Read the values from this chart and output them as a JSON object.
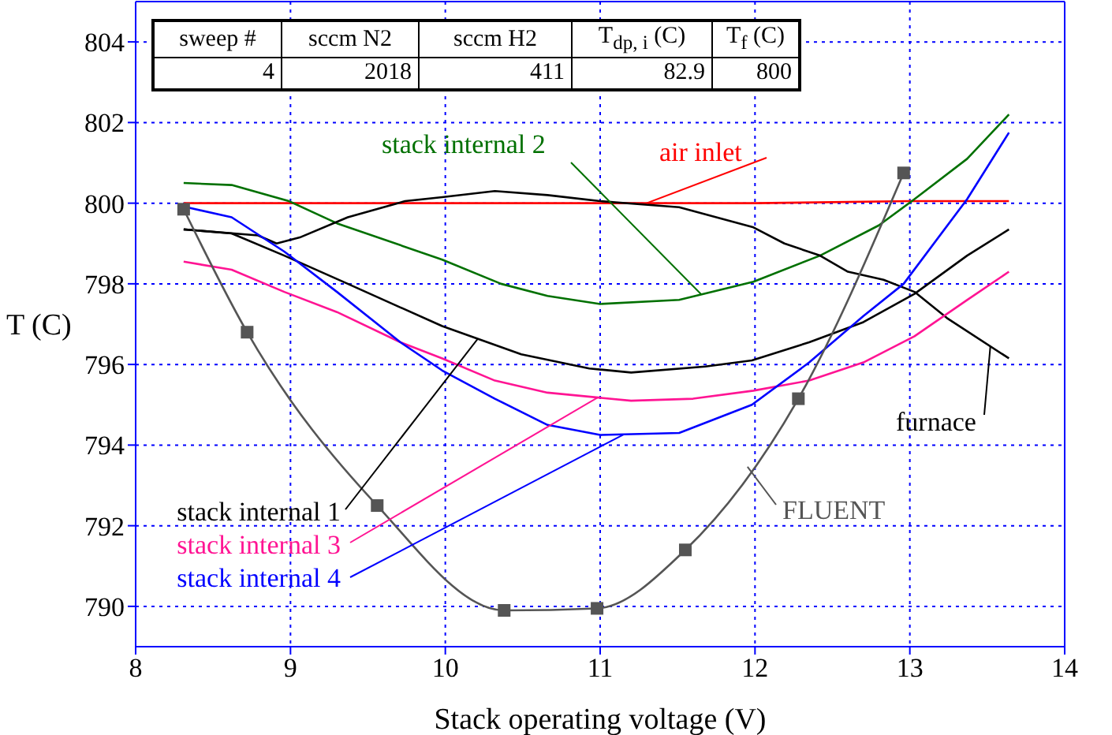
{
  "chart_data": {
    "type": "line",
    "xlabel": "Stack operating voltage (V)",
    "ylabel": "T (C)",
    "xlim": [
      8,
      14
    ],
    "xticks": [
      8,
      9,
      10,
      11,
      12,
      13,
      14
    ],
    "ylim": [
      789,
      805
    ],
    "yticks": [
      790,
      792,
      794,
      796,
      798,
      800,
      802,
      804
    ],
    "grid": true,
    "line_style": "solid",
    "annotations": [
      "sweep #",
      "sccm N2",
      "sccm H2",
      "T$_{dp, i}$ (C)",
      "T$_{f}$ (C)",
      "4",
      "2018",
      "411",
      "82.9",
      "800"
    ],
    "series": [
      {
        "name": "air inlet",
        "color": "#ff0000",
        "marker": "none",
        "x": [
          8.31,
          9.0,
          10.0,
          11.0,
          12.0,
          13.0,
          13.64
        ],
        "values": [
          800.0,
          800.0,
          800.0,
          800.0,
          800.0,
          800.05,
          800.05
        ]
      },
      {
        "name": "stack internal 2",
        "color": "#007000",
        "marker": "none",
        "x": [
          8.31,
          8.62,
          8.99,
          9.3,
          9.98,
          10.36,
          10.66,
          11.0,
          11.51,
          11.99,
          12.42,
          12.8,
          13.03,
          13.37,
          13.64
        ],
        "values": [
          800.5,
          800.45,
          800.05,
          799.5,
          798.6,
          798.0,
          797.7,
          797.5,
          797.6,
          798.05,
          798.7,
          799.45,
          800.1,
          801.1,
          802.2
        ]
      },
      {
        "name": "furnace",
        "color": "#000000",
        "marker": "none",
        "x": [
          8.31,
          8.79,
          8.91,
          9.06,
          9.37,
          9.74,
          9.98,
          10.32,
          10.66,
          11.0,
          11.51,
          11.99,
          12.19,
          12.42,
          12.6,
          12.83,
          13.03,
          13.24,
          13.64
        ],
        "values": [
          799.35,
          799.2,
          799.0,
          799.15,
          799.65,
          800.05,
          800.15,
          800.3,
          800.2,
          800.05,
          799.9,
          799.4,
          799.0,
          798.7,
          798.3,
          798.1,
          797.8,
          797.15,
          796.15
        ]
      },
      {
        "name": "stack internal 1",
        "color": "#000000",
        "marker": "none",
        "x": [
          8.31,
          8.62,
          8.96,
          9.37,
          9.98,
          10.49,
          10.93,
          11.2,
          11.68,
          11.98,
          12.35,
          12.7,
          13.03,
          13.37,
          13.64
        ],
        "values": [
          799.35,
          799.25,
          798.7,
          798.0,
          796.95,
          796.25,
          795.9,
          795.8,
          795.95,
          796.1,
          796.55,
          797.05,
          797.75,
          798.7,
          799.35
        ]
      },
      {
        "name": "stack internal 3",
        "color": "#ff1493",
        "marker": "none",
        "x": [
          8.31,
          8.62,
          8.96,
          9.3,
          9.71,
          9.98,
          10.32,
          10.66,
          11.2,
          11.6,
          11.99,
          12.35,
          12.7,
          13.03,
          13.37,
          13.64
        ],
        "values": [
          798.55,
          798.35,
          797.8,
          797.3,
          796.55,
          796.15,
          795.6,
          795.3,
          795.1,
          795.15,
          795.35,
          795.6,
          796.05,
          796.7,
          797.6,
          798.3
        ]
      },
      {
        "name": "stack internal 4",
        "color": "#0000ff",
        "marker": "none",
        "x": [
          8.33,
          8.62,
          8.96,
          9.3,
          9.71,
          9.98,
          10.32,
          10.66,
          11.0,
          11.51,
          11.98,
          12.35,
          12.7,
          12.96,
          13.37,
          13.64
        ],
        "values": [
          799.9,
          799.65,
          798.8,
          797.8,
          796.55,
          795.85,
          795.15,
          794.5,
          794.25,
          794.3,
          795.0,
          796.05,
          797.2,
          798.0,
          800.1,
          801.75
        ]
      },
      {
        "name": "FLUENT",
        "color": "#555555",
        "marker": "square",
        "x": [
          8.31,
          8.72,
          9.56,
          10.38,
          10.98,
          11.55,
          12.28,
          12.96
        ],
        "values": [
          799.85,
          796.8,
          792.5,
          789.9,
          789.95,
          791.4,
          795.15,
          800.75
        ]
      }
    ]
  }
}
